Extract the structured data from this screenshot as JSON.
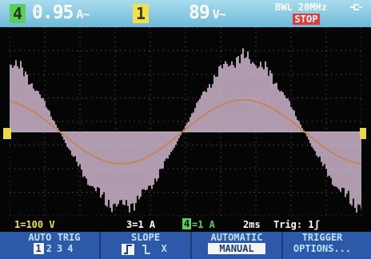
{
  "header": {
    "ch4_label": "4",
    "ch4_reading": "0.95",
    "ch4_unit": "A~",
    "ch1_label": "1",
    "ch1_reading": "89",
    "ch1_unit": "V~",
    "bandwidth": "BWL 20MHz",
    "status": "STOP"
  },
  "status_bar": {
    "ch1_scale": "1=100 V",
    "ch3_scale": "3=1 A",
    "ch4_label": "4",
    "ch4_scale": "=1 A",
    "timebase": "2ms",
    "trigger": "Trig: 1ʃ"
  },
  "softkeys": [
    {
      "title": "AUTO TRIG",
      "options": [
        "1",
        "2",
        "3",
        "4"
      ]
    },
    {
      "title": "SLOPE",
      "options": [
        "X"
      ]
    },
    {
      "title": "AUTOMATIC",
      "options": [
        "MANUAL"
      ]
    },
    {
      "title": "TRIGGER",
      "options": [
        "OPTIONS..."
      ]
    }
  ]
}
